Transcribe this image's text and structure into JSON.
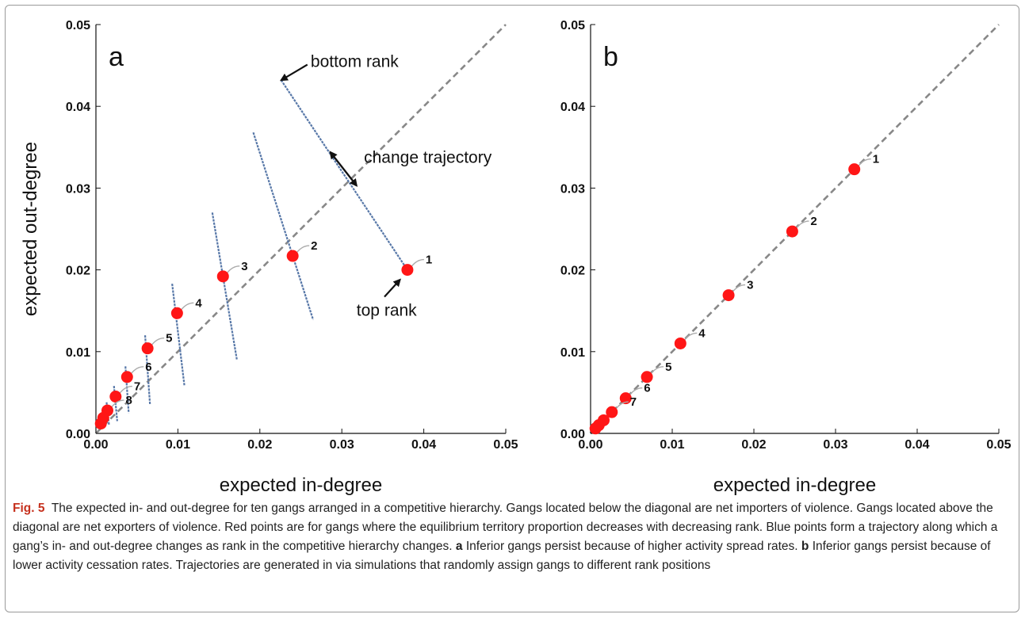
{
  "figure": {
    "label": "Fig. 5"
  },
  "colors": {
    "highlight": "#ff1616",
    "trajectory": "#5878a8",
    "diagonal": "#888888",
    "axis": "#111111",
    "label_leader": "#aaaaaa",
    "caption_label": "#c6321f"
  },
  "chart_data": [
    {
      "panel_label": "a",
      "type": "scatter",
      "xlabel": "expected in-degree",
      "ylabel": "expected out-degree",
      "xlim": [
        0,
        0.05
      ],
      "ylim": [
        0,
        0.05
      ],
      "xticks": [
        "0.00",
        "0.01",
        "0.02",
        "0.03",
        "0.04",
        "0.05"
      ],
      "yticks": [
        "0.00",
        "0.01",
        "0.02",
        "0.03",
        "0.04",
        "0.05"
      ],
      "tick_values": [
        0,
        0.01,
        0.02,
        0.03,
        0.04,
        0.05
      ],
      "diagonal": {
        "x": [
          0,
          0.05
        ],
        "y": [
          0,
          0.05
        ]
      },
      "points": [
        {
          "label": "1",
          "x": 0.038,
          "y": 0.02
        },
        {
          "label": "2",
          "x": 0.024,
          "y": 0.0217
        },
        {
          "label": "3",
          "x": 0.0155,
          "y": 0.0192
        },
        {
          "label": "4",
          "x": 0.0099,
          "y": 0.0147
        },
        {
          "label": "5",
          "x": 0.0063,
          "y": 0.0104
        },
        {
          "label": "6",
          "x": 0.0038,
          "y": 0.0069
        },
        {
          "label": "7",
          "x": 0.0024,
          "y": 0.0045
        },
        {
          "label": "8",
          "x": 0.0014,
          "y": 0.0028
        },
        {
          "label": "",
          "x": 0.0009,
          "y": 0.0019
        },
        {
          "label": "",
          "x": 0.0006,
          "y": 0.0012
        }
      ],
      "trajectories": [
        {
          "x": [
            0.0226,
            0.038
          ],
          "y": [
            0.0432,
            0.02
          ]
        },
        {
          "x": [
            0.0192,
            0.0265
          ],
          "y": [
            0.0368,
            0.0139
          ]
        },
        {
          "x": [
            0.0142,
            0.0172
          ],
          "y": [
            0.027,
            0.009
          ]
        },
        {
          "x": [
            0.0093,
            0.0108
          ],
          "y": [
            0.0183,
            0.0058
          ]
        },
        {
          "x": [
            0.006,
            0.0066
          ],
          "y": [
            0.012,
            0.0035
          ]
        },
        {
          "x": [
            0.0036,
            0.004
          ],
          "y": [
            0.0082,
            0.0025
          ]
        },
        {
          "x": [
            0.0022,
            0.0026
          ],
          "y": [
            0.0058,
            0.0015
          ]
        },
        {
          "x": [
            0.0013,
            0.0016
          ],
          "y": [
            0.0038,
            0.001
          ]
        }
      ],
      "annotations": [
        {
          "text": "bottom rank",
          "at": {
            "x": 0.0226,
            "y": 0.0432
          },
          "from": {
            "x": 0.0258,
            "y": 0.0451
          },
          "text_pos": {
            "x": 0.0262,
            "y": 0.0448
          }
        },
        {
          "text": "change trajectory",
          "at": {
            "x": 0.0286,
            "y": 0.0344
          },
          "from": {
            "x": 0.0318,
            "y": 0.0303
          },
          "text_pos": {
            "x": 0.0327,
            "y": 0.0331
          }
        },
        {
          "text": "top rank",
          "at": {
            "x": 0.0371,
            "y": 0.0188
          },
          "from": {
            "x": 0.0352,
            "y": 0.0167
          },
          "text_pos": {
            "x": 0.0318,
            "y": 0.0144
          }
        }
      ]
    },
    {
      "panel_label": "b",
      "type": "scatter",
      "xlabel": "expected in-degree",
      "ylabel": "",
      "xlim": [
        0,
        0.05
      ],
      "ylim": [
        0,
        0.05
      ],
      "xticks": [
        "0.00",
        "0.01",
        "0.02",
        "0.03",
        "0.04",
        "0.05"
      ],
      "yticks": [
        "0.00",
        "0.01",
        "0.02",
        "0.03",
        "0.04",
        "0.05"
      ],
      "tick_values": [
        0,
        0.01,
        0.02,
        0.03,
        0.04,
        0.05
      ],
      "diagonal": {
        "x": [
          0,
          0.05
        ],
        "y": [
          0,
          0.05
        ]
      },
      "points": [
        {
          "label": "1",
          "x": 0.0323,
          "y": 0.0323
        },
        {
          "label": "2",
          "x": 0.0247,
          "y": 0.0247
        },
        {
          "label": "3",
          "x": 0.0169,
          "y": 0.0169
        },
        {
          "label": "4",
          "x": 0.011,
          "y": 0.011
        },
        {
          "label": "5",
          "x": 0.0069,
          "y": 0.0069
        },
        {
          "label": "6",
          "x": 0.0043,
          "y": 0.0043
        },
        {
          "label": "7",
          "x": 0.0026,
          "y": 0.0026
        },
        {
          "label": "",
          "x": 0.0016,
          "y": 0.0016
        },
        {
          "label": "",
          "x": 0.001,
          "y": 0.001
        },
        {
          "label": "",
          "x": 0.0006,
          "y": 0.0006
        }
      ],
      "trajectories": [],
      "annotations": []
    }
  ],
  "caption": {
    "label": "Fig. 5",
    "sentences": "The expected in- and out-degree for ten gangs arranged in a competitive hierarchy. Gangs located below the diagonal are net importers of violence. Gangs located above the diagonal are net exporters of violence. Red points are for gangs where the equilibrium territory proportion decreases with decreasing rank. Blue points form a trajectory along which a gang’s in- and out-degree changes as rank in the competitive hierarchy changes.",
    "part_a_letter": "a",
    "part_a_text": "Inferior gangs persist because of higher activity spread rates.",
    "part_b_letter": "b",
    "part_b_text": "Inferior gangs persist because of lower activity cessation rates. Trajectories are generated in via simulations that randomly assign gangs to different rank positions"
  }
}
